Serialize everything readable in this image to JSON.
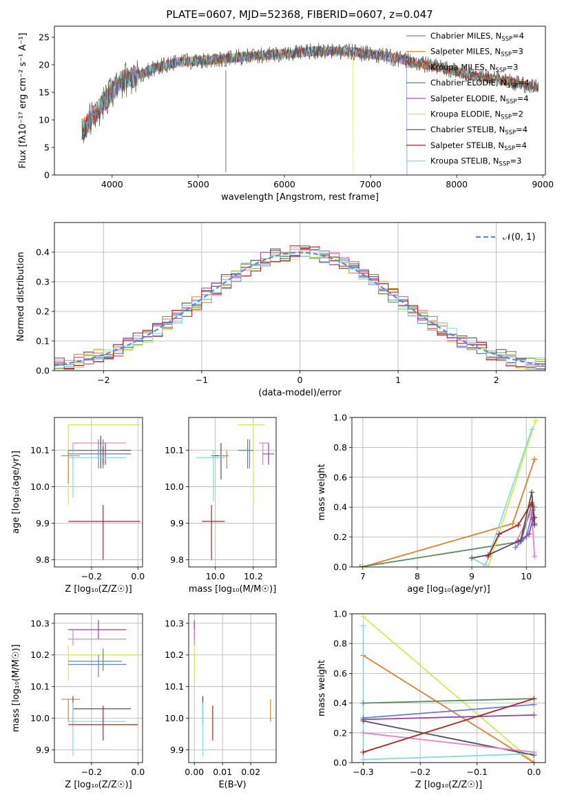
{
  "figure_title": "PLATE=0607, MJD=52368, FIBERID=0607, z=0.047",
  "colors": {
    "c1": "#6a7fd9",
    "c2": "#e07f2b",
    "c3": "#e47fc5",
    "c4": "#5a8a5a",
    "c5": "#9a3faf",
    "c6": "#d2ea4e",
    "c7": "#505050",
    "c8": "#b81e1e",
    "c9": "#86dada"
  },
  "chart_data": [
    {
      "id": "spectrum",
      "type": "line",
      "title": "PLATE=0607, MJD=52368, FIBERID=0607, z=0.047",
      "xlabel": "wavelength [Angstrom, rest frame]",
      "ylabel": "Flux [fλ10⁻¹⁷ erg cm⁻² s⁻¹ A⁻¹]",
      "xlim": [
        3330,
        9030
      ],
      "ylim": [
        0,
        27
      ],
      "xticks": [
        4000,
        5000,
        6000,
        7000,
        8000,
        9000
      ],
      "yticks": [
        0,
        5,
        10,
        15,
        20,
        25
      ],
      "grid": false,
      "legend_position": "top-right",
      "continuum": [
        [
          3650,
          8
        ],
        [
          3800,
          11
        ],
        [
          3950,
          14
        ],
        [
          4100,
          17
        ],
        [
          4300,
          18
        ],
        [
          4500,
          19.5
        ],
        [
          4800,
          20.5
        ],
        [
          5200,
          21
        ],
        [
          5600,
          21.5
        ],
        [
          6000,
          22
        ],
        [
          6400,
          22.5
        ],
        [
          6800,
          22.3
        ],
        [
          7200,
          21.5
        ],
        [
          7500,
          20.5
        ],
        [
          7800,
          19.5
        ],
        [
          8200,
          18
        ],
        [
          8600,
          17
        ],
        [
          8900,
          16
        ]
      ],
      "dropouts": [
        {
          "series": "Kroupa ELODIE",
          "x": 6800
        },
        {
          "series": "Chabrier MILES",
          "x": 7420
        }
      ],
      "series": [
        {
          "name": "Chabrier MILES",
          "nssp": "4",
          "color": "#6a7fd9"
        },
        {
          "name": "Salpeter MILES",
          "nssp": "3",
          "color": "#e07f2b"
        },
        {
          "name": "Kroupa MILES",
          "nssp": "3",
          "color": "#e07f2b"
        },
        {
          "name": "Chabrier ELODIE",
          "nssp": "4",
          "color": "#5a8a5a"
        },
        {
          "name": "Salpeter ELODIE",
          "nssp": "4",
          "color": "#9a3faf"
        },
        {
          "name": "Kroupa ELODIE",
          "nssp": "2",
          "color": "#d2ea4e"
        },
        {
          "name": "Chabrier STELIB",
          "nssp": "4",
          "color": "#505050"
        },
        {
          "name": "Salpeter STELIB",
          "nssp": "4",
          "color": "#b81e1e"
        },
        {
          "name": "Kroupa STELIB",
          "nssp": "3",
          "color": "#86dada"
        }
      ],
      "legend_suffix": "N",
      "legend_sub": "SSP"
    },
    {
      "id": "residuals",
      "type": "line",
      "xlabel": "(data-model)/error",
      "ylabel": "Normed distribution",
      "xlim": [
        -2.5,
        2.5
      ],
      "ylim": [
        0,
        0.5
      ],
      "xticks": [
        -2,
        -1,
        0,
        1,
        2
      ],
      "yticks": [
        0.0,
        0.1,
        0.2,
        0.3,
        0.4
      ],
      "grid": true,
      "legend_position": "top-right",
      "legend": "𝒩(0, 1)",
      "bin_width": 0.1,
      "series_colors": [
        "#6a7fd9",
        "#e07f2b",
        "#e47fc5",
        "#5a8a5a",
        "#9a3faf",
        "#d2ea4e",
        "#505050",
        "#b81e1e",
        "#86dada"
      ]
    },
    {
      "id": "age-z",
      "type": "scatter",
      "xlabel": "Z [log₁₀(Z/Z☉)]",
      "ylabel": "age  [log₁₀(age/yr)]",
      "xlim": [
        -0.36,
        0.02
      ],
      "ylim": [
        9.78,
        10.19
      ],
      "xticks": [
        -0.2,
        0.0
      ],
      "yticks": [
        9.8,
        9.9,
        10.0,
        10.1
      ],
      "grid": true,
      "points": [
        {
          "c": "#d2ea4e",
          "x": -0.3,
          "y": 10.17,
          "xlo": -0.3,
          "xhi": 0.01,
          "ylo": 9.95,
          "yhi": 10.17
        },
        {
          "c": "#e47fc5",
          "x": -0.28,
          "y": 10.12,
          "xlo": -0.28,
          "xhi": -0.05,
          "ylo": 10.06,
          "yhi": 10.12
        },
        {
          "c": "#505050",
          "x": -0.16,
          "y": 10.1,
          "xlo": -0.3,
          "xhi": -0.03,
          "ylo": 10.05,
          "yhi": 10.14
        },
        {
          "c": "#5a8a5a",
          "x": -0.15,
          "y": 10.1,
          "xlo": -0.3,
          "xhi": -0.07,
          "ylo": 10.05,
          "yhi": 10.13
        },
        {
          "c": "#b81e1e",
          "x": -0.15,
          "y": 10.09,
          "xlo": -0.3,
          "xhi": -0.05,
          "ylo": 10.06,
          "yhi": 10.11
        },
        {
          "c": "#9a3faf",
          "x": -0.14,
          "y": 10.09,
          "xlo": -0.25,
          "xhi": -0.03,
          "ylo": 10.06,
          "yhi": 10.12
        },
        {
          "c": "#6a7fd9",
          "x": -0.17,
          "y": 10.09,
          "xlo": -0.3,
          "xhi": -0.05,
          "ylo": 10.05,
          "yhi": 10.13
        },
        {
          "c": "#e07f2b",
          "x": -0.3,
          "y": 10.085,
          "xlo": -0.33,
          "xhi": -0.25,
          "ylo": 10.01,
          "yhi": 10.1
        },
        {
          "c": "#86dada",
          "x": -0.28,
          "y": 10.08,
          "xlo": -0.3,
          "xhi": -0.05,
          "ylo": 9.97,
          "yhi": 10.1
        },
        {
          "c": "#b81e1e",
          "x": -0.15,
          "y": 9.905,
          "xlo": -0.3,
          "xhi": 0.01,
          "ylo": 9.8,
          "yhi": 9.95
        }
      ]
    },
    {
      "id": "age-mass",
      "type": "scatter",
      "xlabel": "mass [log₁₀(M/M☉)]",
      "ylabel": "",
      "xlim": [
        9.86,
        10.32
      ],
      "ylim": [
        9.78,
        10.19
      ],
      "xticks": [
        10.0,
        10.2
      ],
      "yticks": [
        9.8,
        9.9,
        10.0,
        10.1
      ],
      "grid": true,
      "points": [
        {
          "c": "#d2ea4e",
          "x": 10.2,
          "y": 10.17,
          "xlo": 10.12,
          "xhi": 10.26,
          "ylo": 9.95,
          "yhi": 10.17
        },
        {
          "c": "#e47fc5",
          "x": 10.25,
          "y": 10.12,
          "xlo": 10.23,
          "xhi": 10.28,
          "ylo": 10.06,
          "yhi": 10.12
        },
        {
          "c": "#9a3faf",
          "x": 10.28,
          "y": 10.09,
          "xlo": 10.25,
          "xhi": 10.31,
          "ylo": 10.06,
          "yhi": 10.12
        },
        {
          "c": "#505050",
          "x": 10.03,
          "y": 10.085,
          "xlo": 9.98,
          "xhi": 10.07,
          "ylo": 10.02,
          "yhi": 10.12
        },
        {
          "c": "#5a8a5a",
          "x": 10.17,
          "y": 10.1,
          "xlo": 10.12,
          "xhi": 10.2,
          "ylo": 10.05,
          "yhi": 10.13
        },
        {
          "c": "#6a7fd9",
          "x": 10.18,
          "y": 10.1,
          "xlo": 10.14,
          "xhi": 10.2,
          "ylo": 10.05,
          "yhi": 10.13
        },
        {
          "c": "#e07f2b",
          "x": 10.06,
          "y": 10.085,
          "xlo": 10.02,
          "xhi": 10.07,
          "ylo": 10.05,
          "yhi": 10.1
        },
        {
          "c": "#86dada",
          "x": 9.99,
          "y": 10.08,
          "xlo": 9.9,
          "xhi": 10.05,
          "ylo": 9.96,
          "yhi": 10.1
        },
        {
          "c": "#b81e1e",
          "x": 9.98,
          "y": 9.905,
          "xlo": 9.93,
          "xhi": 10.05,
          "ylo": 9.8,
          "yhi": 9.95
        }
      ]
    },
    {
      "id": "weight-age",
      "type": "line",
      "xlabel": "age  [log₁₀(age/yr)]",
      "ylabel": "mass weight",
      "xlim": [
        6.8,
        10.35
      ],
      "ylim": [
        0,
        1.0
      ],
      "xticks": [
        7,
        8,
        9,
        10
      ],
      "yticks": [
        0.0,
        0.2,
        0.4,
        0.6,
        0.8,
        1.0
      ],
      "grid": true,
      "series": [
        {
          "c": "#e07f2b",
          "pts": [
            [
              7.0,
              0.0
            ],
            [
              9.75,
              0.29
            ],
            [
              10.15,
              0.72
            ],
            [
              10.15,
              0.72
            ]
          ]
        },
        {
          "c": "#5a8a5a",
          "pts": [
            [
              6.95,
              0.0
            ],
            [
              9.9,
              0.17
            ],
            [
              10.1,
              0.42
            ],
            [
              10.15,
              0.4
            ]
          ]
        },
        {
          "c": "#e47fc5",
          "pts": [
            [
              9.8,
              0.16
            ],
            [
              10.1,
              0.37
            ],
            [
              10.15,
              0.07
            ]
          ]
        },
        {
          "c": "#d2ea4e",
          "pts": [
            [
              9.3,
              0.0
            ],
            [
              10.17,
              0.98
            ]
          ]
        },
        {
          "c": "#86dada",
          "pts": [
            [
              9.0,
              0.06
            ],
            [
              9.25,
              0.01
            ],
            [
              10.1,
              0.92
            ]
          ]
        },
        {
          "c": "#6a7fd9",
          "pts": [
            [
              9.8,
              0.13
            ],
            [
              10.0,
              0.2
            ],
            [
              10.12,
              0.38
            ],
            [
              10.15,
              0.29
            ]
          ]
        },
        {
          "c": "#9a3faf",
          "pts": [
            [
              9.85,
              0.17
            ],
            [
              10.05,
              0.22
            ],
            [
              10.12,
              0.32
            ],
            [
              10.15,
              0.29
            ]
          ]
        },
        {
          "c": "#505050",
          "pts": [
            [
              9.0,
              0.06
            ],
            [
              9.3,
              0.08
            ],
            [
              9.9,
              0.18
            ],
            [
              10.1,
              0.5
            ],
            [
              10.15,
              0.28
            ]
          ]
        },
        {
          "c": "#b81e1e",
          "pts": [
            [
              9.3,
              0.07
            ],
            [
              9.5,
              0.22
            ],
            [
              9.85,
              0.28
            ],
            [
              10.1,
              0.43
            ],
            [
              10.15,
              0.33
            ]
          ]
        }
      ]
    },
    {
      "id": "mass-z",
      "type": "scatter",
      "xlabel": "Z [log₁₀(Z/Z☉)]",
      "ylabel": "mass [log₁₀(M/M☉)]",
      "xlim": [
        -0.36,
        0.02
      ],
      "ylim": [
        9.86,
        10.33
      ],
      "xticks": [
        -0.2,
        0.0
      ],
      "yticks": [
        9.9,
        10.0,
        10.1,
        10.2,
        10.3
      ],
      "grid": true,
      "points": [
        {
          "c": "#9a3faf",
          "x": -0.17,
          "y": 10.28,
          "xlo": -0.3,
          "xhi": -0.05,
          "ylo": 10.25,
          "yhi": 10.31
        },
        {
          "c": "#e47fc5",
          "x": -0.28,
          "y": 10.25,
          "xlo": -0.3,
          "xhi": -0.05,
          "ylo": 10.23,
          "yhi": 10.28
        },
        {
          "c": "#d2ea4e",
          "x": -0.3,
          "y": 10.2,
          "xlo": -0.3,
          "xhi": 0.0,
          "ylo": 10.12,
          "yhi": 10.23
        },
        {
          "c": "#5a8a5a",
          "x": -0.15,
          "y": 10.18,
          "xlo": -0.3,
          "xhi": -0.07,
          "ylo": 10.15,
          "yhi": 10.22
        },
        {
          "c": "#6a7fd9",
          "x": -0.17,
          "y": 10.17,
          "xlo": -0.3,
          "xhi": -0.05,
          "ylo": 10.13,
          "yhi": 10.2
        },
        {
          "c": "#e07f2b",
          "x": -0.3,
          "y": 10.06,
          "xlo": -0.33,
          "xhi": -0.25,
          "ylo": 9.99,
          "yhi": 10.06
        },
        {
          "c": "#505050",
          "x": -0.28,
          "y": 10.03,
          "xlo": -0.28,
          "xhi": -0.03,
          "ylo": 9.98,
          "yhi": 10.07
        },
        {
          "c": "#86dada",
          "x": -0.28,
          "y": 9.99,
          "xlo": -0.3,
          "xhi": -0.05,
          "ylo": 9.88,
          "yhi": 10.05
        },
        {
          "c": "#b81e1e",
          "x": -0.15,
          "y": 9.98,
          "xlo": -0.3,
          "xhi": 0.0,
          "ylo": 9.93,
          "yhi": 10.04
        }
      ]
    },
    {
      "id": "mass-ebv",
      "type": "scatter",
      "xlabel": "E(B-V)",
      "ylabel": "",
      "xlim": [
        -0.002,
        0.029
      ],
      "ylim": [
        9.86,
        10.33
      ],
      "xticks": [
        0.0,
        0.01,
        0.02
      ],
      "yticks": [
        9.9,
        10.0,
        10.1,
        10.2,
        10.3
      ],
      "grid": true,
      "points": [
        {
          "c": "#9a3faf",
          "x": 0.0,
          "y": 10.28,
          "ylo": 10.25,
          "yhi": 10.31
        },
        {
          "c": "#e47fc5",
          "x": 0.0,
          "y": 10.25,
          "ylo": 10.23,
          "yhi": 10.28
        },
        {
          "c": "#d2ea4e",
          "x": 0.0,
          "y": 10.2,
          "ylo": 10.12,
          "yhi": 10.23
        },
        {
          "c": "#5a8a5a",
          "x": 0.003,
          "y": 10.03,
          "ylo": 9.98,
          "yhi": 10.07
        },
        {
          "c": "#505050",
          "x": 0.003,
          "y": 10.03,
          "ylo": 9.98,
          "yhi": 10.07
        },
        {
          "c": "#86dada",
          "x": 0.003,
          "y": 9.99,
          "ylo": 9.88,
          "yhi": 10.05
        },
        {
          "c": "#b81e1e",
          "x": 0.0065,
          "y": 9.98,
          "ylo": 9.93,
          "yhi": 10.04
        },
        {
          "c": "#e07f2b",
          "x": 0.027,
          "y": 10.0,
          "ylo": 9.99,
          "yhi": 10.06
        }
      ]
    },
    {
      "id": "weight-z",
      "type": "line",
      "xlabel": "Z [log₁₀(Z/Z☉)]",
      "ylabel": "mass weight",
      "xlim": [
        -0.32,
        0.02
      ],
      "ylim": [
        0,
        1.0
      ],
      "xticks": [
        -0.3,
        -0.2,
        -0.1,
        0.0
      ],
      "yticks": [
        0.0,
        0.2,
        0.4,
        0.6,
        0.8,
        1.0
      ],
      "grid": true,
      "series": [
        {
          "c": "#d2ea4e",
          "pts": [
            [
              -0.3,
              0.98
            ],
            [
              0.0,
              0.0
            ]
          ]
        },
        {
          "c": "#e07f2b",
          "pts": [
            [
              -0.3,
              0.72
            ],
            [
              0.0,
              0.0
            ]
          ]
        },
        {
          "c": "#86dada",
          "pts": [
            [
              -0.3,
              0.92
            ],
            [
              -0.3,
              0.02
            ],
            [
              0.0,
              0.06
            ]
          ]
        },
        {
          "c": "#5a8a5a",
          "pts": [
            [
              -0.3,
              0.4
            ],
            [
              0.0,
              0.43
            ]
          ]
        },
        {
          "c": "#6a7fd9",
          "pts": [
            [
              -0.3,
              0.3
            ],
            [
              0.0,
              0.39
            ]
          ]
        },
        {
          "c": "#9a3faf",
          "pts": [
            [
              -0.3,
              0.29
            ],
            [
              0.0,
              0.32
            ]
          ]
        },
        {
          "c": "#505050",
          "pts": [
            [
              -0.3,
              0.28
            ],
            [
              0.0,
              0.05
            ]
          ]
        },
        {
          "c": "#e47fc5",
          "pts": [
            [
              -0.3,
              0.2
            ],
            [
              0.0,
              0.07
            ]
          ]
        },
        {
          "c": "#b81e1e",
          "pts": [
            [
              -0.3,
              0.07
            ],
            [
              0.0,
              0.43
            ]
          ]
        }
      ]
    }
  ]
}
